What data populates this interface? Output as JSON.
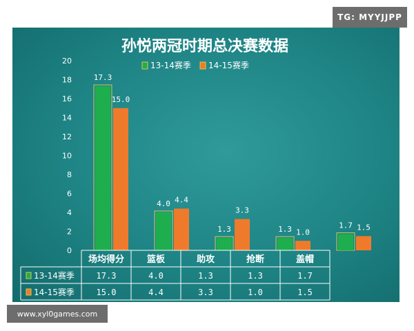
{
  "watermark_top": "TG: MYYJJPP",
  "watermark_bottom": "www.xyl0games.com",
  "chart_data": {
    "type": "bar",
    "title": "孙悦两冠时期总决赛数据",
    "categories": [
      "场均得分",
      "篮板",
      "助攻",
      "抢断",
      "盖帽"
    ],
    "series": [
      {
        "name": "13-14赛季",
        "values": [
          17.3,
          4.0,
          1.3,
          1.3,
          1.7
        ],
        "labels": [
          "17.3",
          "4.0",
          "1.3",
          "1.3",
          "1.7"
        ],
        "color": "#1fae4e"
      },
      {
        "name": "14-15赛季",
        "values": [
          15.0,
          4.4,
          3.3,
          1.0,
          1.5
        ],
        "labels": [
          "15.0",
          "4.4",
          "3.3",
          "1.0",
          "1.5"
        ],
        "color": "#f07a2c"
      }
    ],
    "ylim": [
      0,
      20
    ],
    "yticks": [
      "0",
      "2",
      "4",
      "6",
      "8",
      "10",
      "12",
      "14",
      "16",
      "18",
      "20"
    ],
    "legend_position": "top",
    "grid": false,
    "data_table": true
  }
}
